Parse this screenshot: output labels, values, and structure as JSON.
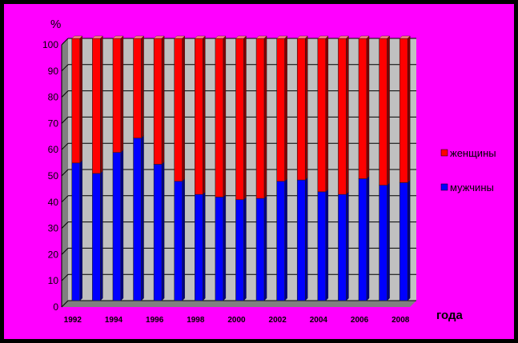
{
  "colors": {
    "background": "#FF00FF",
    "border": "#000000",
    "plot_area": "#C0C0C0",
    "women": "#FF0000",
    "men": "#0000FF"
  },
  "chart_data": {
    "type": "bar",
    "stacked": true,
    "percent": true,
    "title": "",
    "ylabel": "%",
    "xlabel": "года",
    "ylim": [
      0,
      100
    ],
    "yticks": [
      "0",
      "10",
      "20",
      "30",
      "40",
      "50",
      "60",
      "70",
      "80",
      "90",
      "100"
    ],
    "x_tick_labels": [
      "1992",
      "1994",
      "1996",
      "1998",
      "2000",
      "2002",
      "2004",
      "2006",
      "2008"
    ],
    "categories": [
      "1992",
      "1993",
      "1994",
      "1995",
      "1996",
      "1997",
      "1998",
      "1999",
      "2000",
      "2001",
      "2002",
      "2003",
      "2004",
      "2005",
      "2006",
      "2007",
      "2008"
    ],
    "grid": true,
    "legend_position": "right",
    "series": [
      {
        "name": "мужчины",
        "color": "#0000FF",
        "values": [
          52.5,
          48.5,
          56.5,
          62,
          52,
          45.5,
          40.5,
          39.5,
          38.5,
          39,
          45.5,
          46,
          41.5,
          40.5,
          46.5,
          44,
          45
        ]
      },
      {
        "name": "женщины",
        "color": "#FF0000",
        "values": [
          47.5,
          51.5,
          43.5,
          38,
          48,
          54.5,
          59.5,
          60.5,
          61.5,
          61,
          54.5,
          54,
          58.5,
          59.5,
          53.5,
          56,
          55
        ]
      }
    ]
  }
}
